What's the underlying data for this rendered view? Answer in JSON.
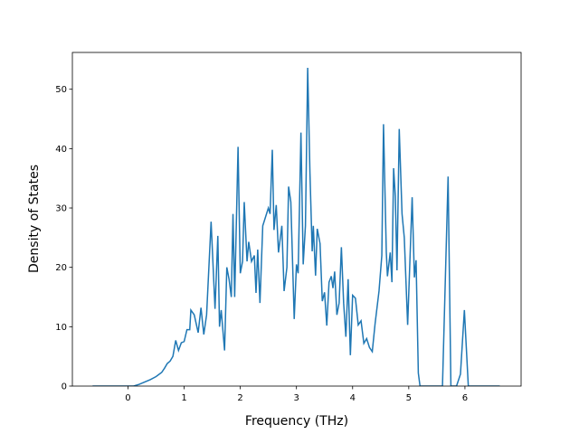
{
  "chart_data": {
    "type": "line",
    "x_label": "Frequency (THz)",
    "y_label": "Density of States",
    "x": [
      -0.63,
      0.1,
      0.2,
      0.3,
      0.4,
      0.5,
      0.6,
      0.65,
      0.7,
      0.75,
      0.8,
      0.85,
      0.9,
      0.95,
      1.0,
      1.05,
      1.1,
      1.12,
      1.18,
      1.25,
      1.3,
      1.35,
      1.4,
      1.48,
      1.55,
      1.6,
      1.63,
      1.66,
      1.72,
      1.76,
      1.8,
      1.84,
      1.87,
      1.9,
      1.96,
      2.0,
      2.04,
      2.07,
      2.12,
      2.15,
      2.2,
      2.25,
      2.28,
      2.31,
      2.35,
      2.4,
      2.45,
      2.5,
      2.53,
      2.57,
      2.6,
      2.64,
      2.68,
      2.74,
      2.78,
      2.83,
      2.86,
      2.9,
      2.96,
      3.0,
      3.03,
      3.08,
      3.12,
      3.16,
      3.2,
      3.24,
      3.28,
      3.3,
      3.34,
      3.37,
      3.42,
      3.46,
      3.5,
      3.54,
      3.58,
      3.62,
      3.65,
      3.68,
      3.72,
      3.76,
      3.8,
      3.84,
      3.88,
      3.92,
      3.96,
      4.0,
      4.05,
      4.1,
      4.15,
      4.2,
      4.25,
      4.3,
      4.35,
      4.4,
      4.47,
      4.52,
      4.55,
      4.6,
      4.62,
      4.67,
      4.7,
      4.73,
      4.76,
      4.79,
      4.83,
      4.88,
      4.92,
      4.98,
      5.06,
      5.1,
      5.13,
      5.17,
      5.2,
      5.6,
      5.7,
      5.75,
      5.85,
      5.92,
      5.99,
      6.06,
      6.62
    ],
    "values": [
      0,
      0,
      0.3,
      0.7,
      1.1,
      1.6,
      2.3,
      3,
      3.8,
      4.2,
      5,
      7.7,
      6,
      7.3,
      7.5,
      9.5,
      9.5,
      12.8,
      12,
      9,
      13.2,
      8.7,
      12,
      27.7,
      13,
      25.3,
      10,
      12.8,
      6,
      20,
      18,
      15,
      29,
      15,
      40.3,
      19,
      21,
      31,
      21,
      24.3,
      21,
      22,
      15.7,
      23,
      14,
      27,
      28.5,
      30,
      29,
      39.8,
      26.3,
      30.5,
      22.5,
      27,
      16,
      20,
      33.6,
      31,
      11.3,
      20.5,
      19,
      42.7,
      20.5,
      27,
      53.6,
      36,
      22.7,
      27,
      18.6,
      26.5,
      24,
      14.3,
      15.8,
      10.2,
      17.5,
      18.5,
      16.5,
      19.3,
      12,
      14,
      23.4,
      14,
      8.3,
      18,
      5.2,
      15.3,
      14.8,
      10.3,
      11,
      7.2,
      8,
      6.5,
      5.8,
      10.5,
      16,
      22,
      44.1,
      22.5,
      18.5,
      22.5,
      17.5,
      36.7,
      32,
      19.5,
      43.3,
      29,
      25,
      10.3,
      31.8,
      18.3,
      21.2,
      2.2,
      0,
      0,
      35.3,
      0,
      0,
      2,
      12.8,
      0,
      0
    ],
    "color": "#1f77b4",
    "xlim": [
      -0.99,
      7.0
    ],
    "ylim": [
      0,
      56.2
    ],
    "xticks": [
      0,
      1,
      2,
      3,
      4,
      5,
      6
    ],
    "yticks": [
      0,
      10,
      20,
      30,
      40,
      50
    ]
  }
}
